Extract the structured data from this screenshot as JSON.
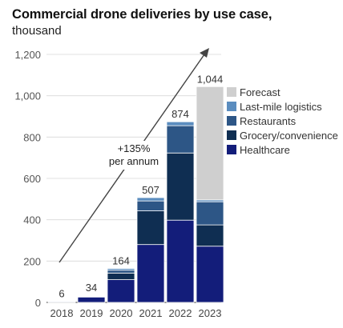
{
  "header": {
    "title": "Commercial drone deliveries by use case,",
    "subtitle": "thousand"
  },
  "chart_data": {
    "type": "bar",
    "stacked": true,
    "categories": [
      "2018",
      "2019",
      "2020",
      "2021",
      "2022",
      "2023"
    ],
    "totals": [
      "6",
      "34",
      "164",
      "507",
      "874",
      "1,044"
    ],
    "ylim": [
      0,
      1200
    ],
    "y_ticks": [
      "0",
      "200",
      "400",
      "600",
      "800",
      "1,000",
      "1,200"
    ],
    "grid": true,
    "legend_position": "right",
    "annotation": [
      "+135%",
      "per annum"
    ],
    "series": [
      {
        "name": "Healthcare",
        "color": "#131d7a",
        "values": [
          4,
          26,
          110,
          280,
          398,
          272
        ]
      },
      {
        "name": "Grocery/convenience",
        "color": "#0f2e52",
        "values": [
          1,
          3,
          32,
          163,
          325,
          103
        ]
      },
      {
        "name": "Restaurants",
        "color": "#2d5686",
        "values": [
          0.7,
          3,
          14,
          48,
          132,
          112
        ]
      },
      {
        "name": "Last-mile logistics",
        "color": "#5b8dbf",
        "values": [
          0.3,
          2,
          8,
          16,
          19,
          9
        ]
      },
      {
        "name": "Forecast",
        "color": "#cfcfcf",
        "values": [
          0,
          0,
          0,
          0,
          0,
          548
        ]
      }
    ]
  }
}
